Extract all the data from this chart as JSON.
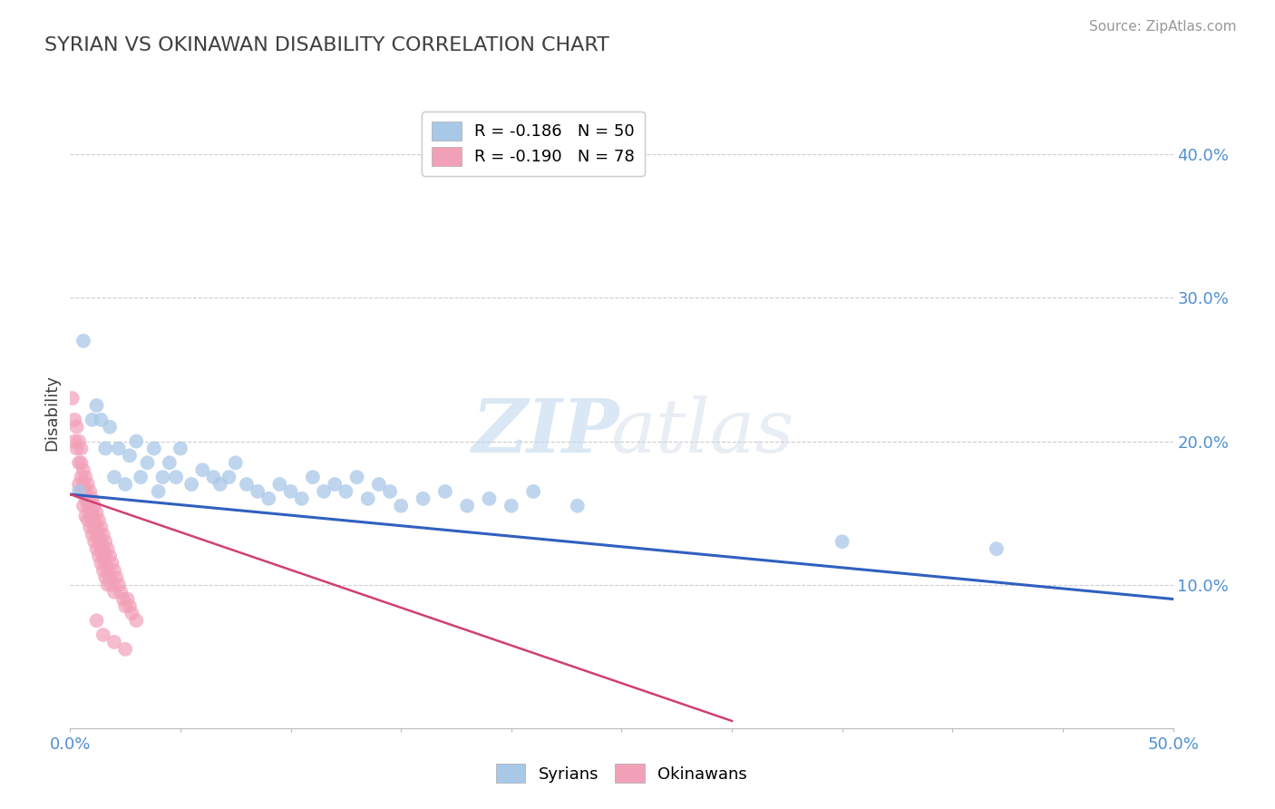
{
  "title": "SYRIAN VS OKINAWAN DISABILITY CORRELATION CHART",
  "source": "Source: ZipAtlas.com",
  "ylabel": "Disability",
  "xlim": [
    0.0,
    0.5
  ],
  "ylim": [
    0.0,
    0.44
  ],
  "legend_syrian": "R = -0.186   N = 50",
  "legend_okinawan": "R = -0.190   N = 78",
  "syrian_color": "#a8c8e8",
  "okinawan_color": "#f2a0b8",
  "syrian_line_color": "#3060c0",
  "okinawan_line_color": "#d04070",
  "background_color": "#ffffff",
  "grid_color": "#c8c8c8",
  "title_color": "#404040",
  "axis_label_color": "#5090d0",
  "ytick_values": [
    0.1,
    0.2,
    0.3,
    0.4
  ],
  "ytick_labels": [
    "10.0%",
    "20.0%",
    "30.0%",
    "40.0%"
  ],
  "syrian_points": [
    [
      0.004,
      0.165
    ],
    [
      0.006,
      0.27
    ],
    [
      0.01,
      0.215
    ],
    [
      0.012,
      0.225
    ],
    [
      0.014,
      0.215
    ],
    [
      0.016,
      0.195
    ],
    [
      0.018,
      0.21
    ],
    [
      0.02,
      0.175
    ],
    [
      0.022,
      0.195
    ],
    [
      0.025,
      0.17
    ],
    [
      0.027,
      0.19
    ],
    [
      0.03,
      0.2
    ],
    [
      0.032,
      0.175
    ],
    [
      0.035,
      0.185
    ],
    [
      0.038,
      0.195
    ],
    [
      0.04,
      0.165
    ],
    [
      0.042,
      0.175
    ],
    [
      0.045,
      0.185
    ],
    [
      0.048,
      0.175
    ],
    [
      0.05,
      0.195
    ],
    [
      0.055,
      0.17
    ],
    [
      0.06,
      0.18
    ],
    [
      0.065,
      0.175
    ],
    [
      0.068,
      0.17
    ],
    [
      0.072,
      0.175
    ],
    [
      0.075,
      0.185
    ],
    [
      0.08,
      0.17
    ],
    [
      0.085,
      0.165
    ],
    [
      0.09,
      0.16
    ],
    [
      0.095,
      0.17
    ],
    [
      0.1,
      0.165
    ],
    [
      0.105,
      0.16
    ],
    [
      0.11,
      0.175
    ],
    [
      0.115,
      0.165
    ],
    [
      0.12,
      0.17
    ],
    [
      0.125,
      0.165
    ],
    [
      0.13,
      0.175
    ],
    [
      0.135,
      0.16
    ],
    [
      0.14,
      0.17
    ],
    [
      0.145,
      0.165
    ],
    [
      0.15,
      0.155
    ],
    [
      0.16,
      0.16
    ],
    [
      0.17,
      0.165
    ],
    [
      0.18,
      0.155
    ],
    [
      0.19,
      0.16
    ],
    [
      0.2,
      0.155
    ],
    [
      0.21,
      0.165
    ],
    [
      0.23,
      0.155
    ],
    [
      0.35,
      0.13
    ],
    [
      0.42,
      0.125
    ]
  ],
  "okinawan_points": [
    [
      0.001,
      0.23
    ],
    [
      0.002,
      0.215
    ],
    [
      0.002,
      0.2
    ],
    [
      0.003,
      0.195
    ],
    [
      0.003,
      0.21
    ],
    [
      0.004,
      0.185
    ],
    [
      0.004,
      0.2
    ],
    [
      0.004,
      0.17
    ],
    [
      0.005,
      0.195
    ],
    [
      0.005,
      0.175
    ],
    [
      0.005,
      0.165
    ],
    [
      0.005,
      0.185
    ],
    [
      0.006,
      0.18
    ],
    [
      0.006,
      0.165
    ],
    [
      0.006,
      0.155
    ],
    [
      0.006,
      0.17
    ],
    [
      0.007,
      0.175
    ],
    [
      0.007,
      0.16
    ],
    [
      0.007,
      0.148
    ],
    [
      0.007,
      0.165
    ],
    [
      0.008,
      0.17
    ],
    [
      0.008,
      0.155
    ],
    [
      0.008,
      0.145
    ],
    [
      0.008,
      0.16
    ],
    [
      0.009,
      0.165
    ],
    [
      0.009,
      0.15
    ],
    [
      0.009,
      0.14
    ],
    [
      0.009,
      0.155
    ],
    [
      0.01,
      0.16
    ],
    [
      0.01,
      0.145
    ],
    [
      0.01,
      0.135
    ],
    [
      0.01,
      0.15
    ],
    [
      0.011,
      0.155
    ],
    [
      0.011,
      0.14
    ],
    [
      0.011,
      0.13
    ],
    [
      0.011,
      0.145
    ],
    [
      0.012,
      0.15
    ],
    [
      0.012,
      0.135
    ],
    [
      0.012,
      0.125
    ],
    [
      0.012,
      0.14
    ],
    [
      0.013,
      0.145
    ],
    [
      0.013,
      0.13
    ],
    [
      0.013,
      0.12
    ],
    [
      0.013,
      0.135
    ],
    [
      0.014,
      0.14
    ],
    [
      0.014,
      0.125
    ],
    [
      0.014,
      0.115
    ],
    [
      0.014,
      0.13
    ],
    [
      0.015,
      0.135
    ],
    [
      0.015,
      0.12
    ],
    [
      0.015,
      0.11
    ],
    [
      0.015,
      0.125
    ],
    [
      0.016,
      0.13
    ],
    [
      0.016,
      0.115
    ],
    [
      0.016,
      0.105
    ],
    [
      0.016,
      0.12
    ],
    [
      0.017,
      0.125
    ],
    [
      0.017,
      0.11
    ],
    [
      0.017,
      0.1
    ],
    [
      0.018,
      0.12
    ],
    [
      0.018,
      0.105
    ],
    [
      0.019,
      0.115
    ],
    [
      0.019,
      0.1
    ],
    [
      0.02,
      0.11
    ],
    [
      0.02,
      0.095
    ],
    [
      0.021,
      0.105
    ],
    [
      0.022,
      0.1
    ],
    [
      0.023,
      0.095
    ],
    [
      0.024,
      0.09
    ],
    [
      0.025,
      0.085
    ],
    [
      0.026,
      0.09
    ],
    [
      0.027,
      0.085
    ],
    [
      0.028,
      0.08
    ],
    [
      0.03,
      0.075
    ],
    [
      0.012,
      0.075
    ],
    [
      0.015,
      0.065
    ],
    [
      0.02,
      0.06
    ],
    [
      0.025,
      0.055
    ]
  ],
  "syrian_trendline_x": [
    0.0,
    0.5
  ],
  "syrian_trendline_y": [
    0.163,
    0.09
  ],
  "okinawan_trendline_x": [
    0.0,
    0.3
  ],
  "okinawan_trendline_y": [
    0.163,
    0.005
  ]
}
